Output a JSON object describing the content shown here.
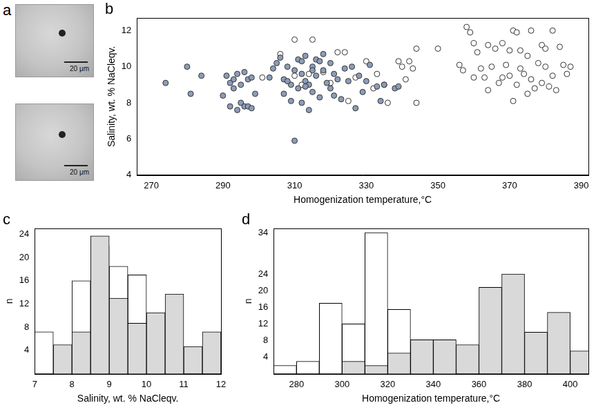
{
  "images": {
    "panel": "a",
    "scale_bars": [
      "20 μm",
      "20 μm"
    ]
  },
  "chart_data": [
    {
      "panel": "b",
      "type": "scatter",
      "x_label": "Homogenization temperature,°C",
      "y_label": "Salinity, wt. % NaCleqv.",
      "xlim": [
        266,
        392
      ],
      "xticks": [
        270,
        290,
        310,
        330,
        350,
        370,
        390
      ],
      "ylim": [
        4,
        12.7
      ],
      "yticks": [
        4,
        6,
        8,
        10,
        12
      ],
      "grid": false,
      "series": [
        {
          "color": "#8c9cb8",
          "marker": "filled_circle",
          "x": [
            274,
            280,
            281,
            284,
            290,
            291,
            292,
            292,
            293,
            293,
            294,
            294,
            295,
            295,
            296,
            296,
            297,
            297,
            298,
            298,
            299,
            303,
            304,
            305,
            306,
            307,
            307,
            308,
            309,
            309,
            310,
            310,
            311,
            311,
            312,
            312,
            313,
            313,
            314,
            314,
            315,
            315,
            316,
            316,
            317,
            318,
            318,
            319,
            320,
            320,
            321,
            322,
            323,
            324,
            325,
            326,
            327,
            328,
            329,
            330,
            331,
            333,
            334,
            335,
            338,
            339,
            313,
            315,
            317,
            321,
            308,
            312
          ],
          "values": [
            9.1,
            10.0,
            8.5,
            9.5,
            8.4,
            9.5,
            9.1,
            7.8,
            9.3,
            8.8,
            7.6,
            9.6,
            9.0,
            8.0,
            7.8,
            9.7,
            9.3,
            7.8,
            7.7,
            9.4,
            8.5,
            9.4,
            9.9,
            10.2,
            10.5,
            9.3,
            8.5,
            10.0,
            9.0,
            8.1,
            5.9,
            9.8,
            10.4,
            8.8,
            9.6,
            8.0,
            9.2,
            10.6,
            7.6,
            9.0,
            10.0,
            8.6,
            9.5,
            10.4,
            8.3,
            9.8,
            10.7,
            9.1,
            8.8,
            10.2,
            9.6,
            9.3,
            8.2,
            9.9,
            9.2,
            10.0,
            7.7,
            9.5,
            8.6,
            9.2,
            10.1,
            8.9,
            8.1,
            9.0,
            8.8,
            8.9,
            8.9,
            9.8,
            10.3,
            8.4,
            9.2,
            10.3
          ]
        },
        {
          "color": "#ffffff",
          "marker": "open_circle",
          "x": [
            301,
            306,
            310,
            310,
            312,
            314,
            315,
            318,
            320,
            322,
            324,
            325,
            327,
            330,
            332,
            333,
            335,
            336,
            339,
            340,
            341,
            342,
            343,
            344,
            344,
            350,
            356,
            357,
            358,
            359,
            360,
            360,
            361,
            362,
            363,
            364,
            364,
            365,
            366,
            367,
            368,
            369,
            370,
            370,
            371,
            371,
            372,
            373,
            373,
            374,
            375,
            376,
            376,
            377,
            378,
            379,
            379,
            380,
            381,
            382,
            382,
            383,
            384,
            385,
            386,
            387,
            380,
            375,
            368,
            372
          ],
          "values": [
            9.4,
            10.7,
            11.5,
            9.5,
            9.0,
            9.6,
            11.5,
            9.7,
            9.1,
            10.8,
            10.8,
            8.1,
            9.4,
            10.3,
            8.8,
            9.6,
            9.0,
            8.0,
            10.3,
            10.0,
            9.3,
            10.3,
            9.9,
            8.0,
            11.0,
            11.0,
            10.1,
            9.8,
            12.2,
            11.9,
            11.3,
            9.4,
            10.8,
            9.9,
            9.4,
            8.7,
            11.2,
            10.0,
            11.0,
            9.1,
            11.3,
            10.1,
            10.9,
            9.5,
            8.1,
            12.0,
            9.0,
            10.9,
            9.9,
            9.6,
            10.6,
            12.0,
            9.3,
            8.8,
            10.2,
            11.2,
            9.1,
            10.0,
            8.9,
            12.0,
            9.5,
            8.7,
            11.1,
            10.1,
            9.6,
            10.0,
            11.0,
            8.5,
            9.4,
            11.9
          ]
        }
      ]
    },
    {
      "panel": "c",
      "type": "histogram",
      "x_label": "Salinity, wt. % NaCleqv.",
      "y_label": "n",
      "xlim": [
        7,
        12
      ],
      "xticks": [
        7,
        8,
        9,
        10,
        11,
        12
      ],
      "ylim": [
        0,
        25
      ],
      "yticks": [
        4,
        8,
        12,
        16,
        20,
        24
      ],
      "grid": false,
      "bins": [
        7,
        7.5,
        8,
        8.5,
        9,
        9.5,
        10,
        10.5,
        11,
        11.5,
        12
      ],
      "series": [
        {
          "color": "#d9d9d9",
          "values": [
            0,
            5,
            7.2,
            23.7,
            13,
            8.7,
            10.5,
            13.7,
            4.7,
            7.2
          ]
        },
        {
          "color": "#ffffff",
          "values": [
            7.2,
            3.8,
            16,
            22,
            18.5,
            17,
            10,
            2.5,
            0,
            0
          ]
        }
      ]
    },
    {
      "panel": "d",
      "type": "histogram",
      "x_label": "Homogenization temperature,°C",
      "y_label": "n",
      "xlim": [
        270,
        408
      ],
      "xticks": [
        280,
        300,
        320,
        340,
        360,
        380,
        400
      ],
      "ylim": [
        0,
        35
      ],
      "yticks": [
        4,
        8,
        12,
        16,
        20,
        24,
        34
      ],
      "grid": false,
      "bins": [
        270,
        280,
        290,
        300,
        310,
        320,
        330,
        340,
        350,
        360,
        370,
        380,
        390,
        400,
        410
      ],
      "series": [
        {
          "color": "#d9d9d9",
          "values": [
            0,
            0,
            0,
            3,
            2,
            5,
            8.2,
            8.2,
            7,
            20.8,
            24,
            10,
            14.8,
            5.5
          ]
        },
        {
          "color": "#ffffff",
          "values": [
            2,
            3,
            17,
            12,
            34,
            15.5,
            7,
            1,
            0,
            0,
            0,
            0,
            0,
            0
          ]
        }
      ]
    }
  ]
}
